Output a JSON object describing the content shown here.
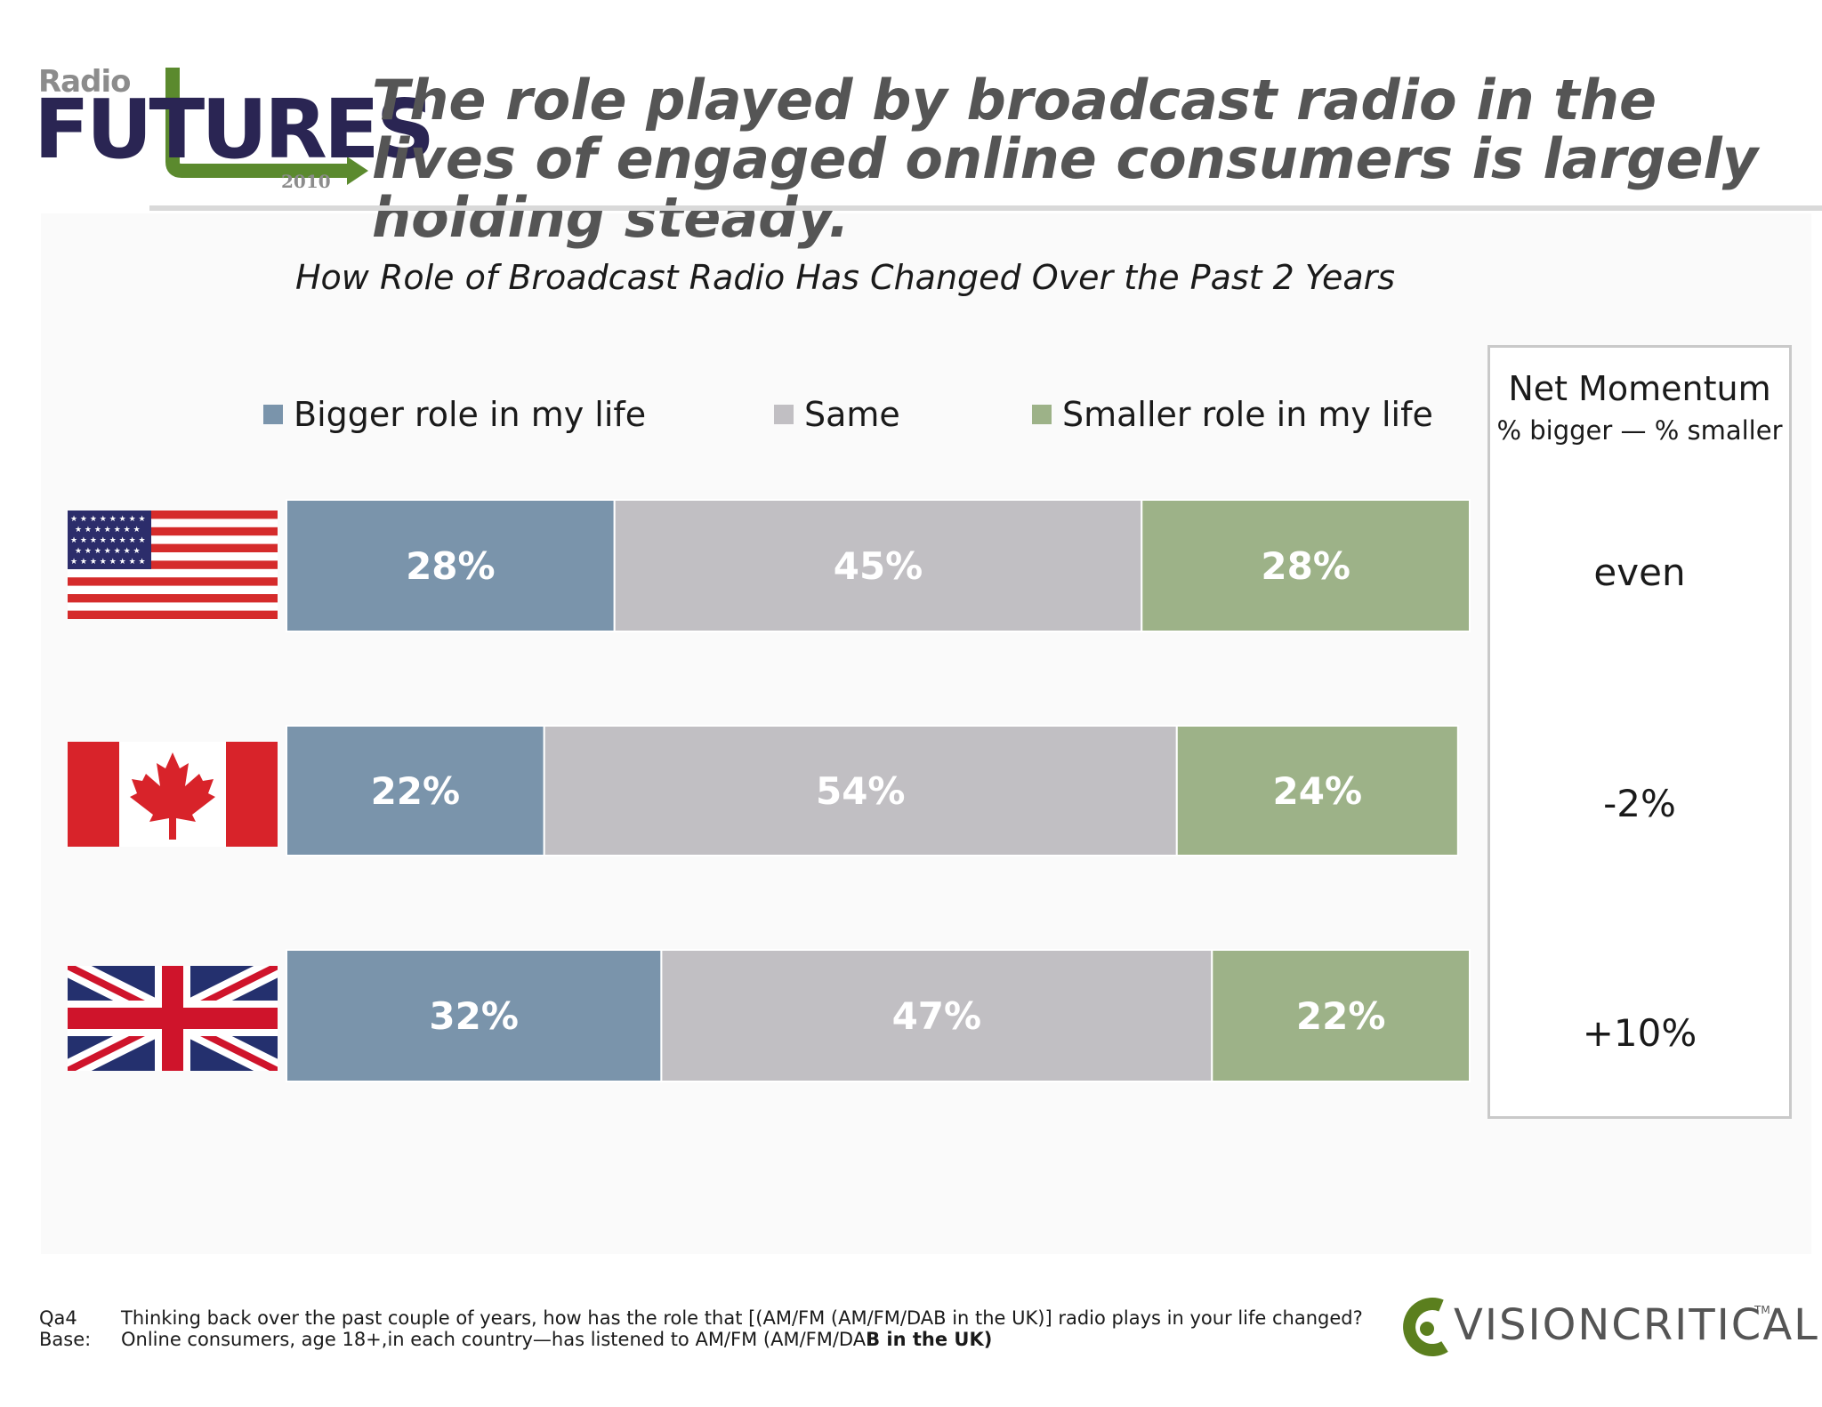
{
  "logo": {
    "radio": "Radio",
    "futures": "FUTURES",
    "year": "2010",
    "arrow_color": "#5b8a2e"
  },
  "title": "The role played by broadcast radio in the lives of engaged online consumers is largely holding steady.",
  "chart_data": {
    "type": "bar",
    "orientation": "horizontal",
    "stacked": true,
    "title": "How Role of Broadcast Radio Has Changed Over the Past 2 Years",
    "categories": [
      "USA",
      "Canada",
      "UK"
    ],
    "series": [
      {
        "name": "Bigger role in my life",
        "color": "#7a94ab",
        "values": [
          28,
          22,
          32
        ],
        "labels": [
          "28%",
          "22%",
          "32%"
        ]
      },
      {
        "name": "Same",
        "color": "#c1bfc3",
        "values": [
          45,
          54,
          47
        ],
        "labels": [
          "45%",
          "54%",
          "47%"
        ]
      },
      {
        "name": "Smaller role in my life",
        "color": "#9db288",
        "values": [
          28,
          24,
          22
        ],
        "labels": [
          "28%",
          "24%",
          "22%"
        ]
      }
    ],
    "legend_position": "top",
    "grid": false,
    "xlim": [
      0,
      101
    ]
  },
  "momentum": {
    "title": "Net Momentum",
    "subtitle": "% bigger — % smaller",
    "values": [
      "even",
      "-2%",
      "+10%"
    ]
  },
  "flags": [
    "us-flag-icon",
    "canada-flag-icon",
    "uk-flag-icon"
  ],
  "footer": {
    "q_label": "Qa4",
    "q_text": "Thinking back over the past couple of years, how has the role that [(AM/FM (AM/FM/DAB in the UK)] radio plays in your life changed?",
    "base_label": "Base:",
    "base_text": "Online consumers, age 18+,in each country—has listened to AM/FM (AM/FM/DA",
    "base_text_bold": "B in the UK)"
  },
  "brand": {
    "name": "VISIONCRITICAL",
    "tm": "TM",
    "color": "#5b7f1e"
  }
}
